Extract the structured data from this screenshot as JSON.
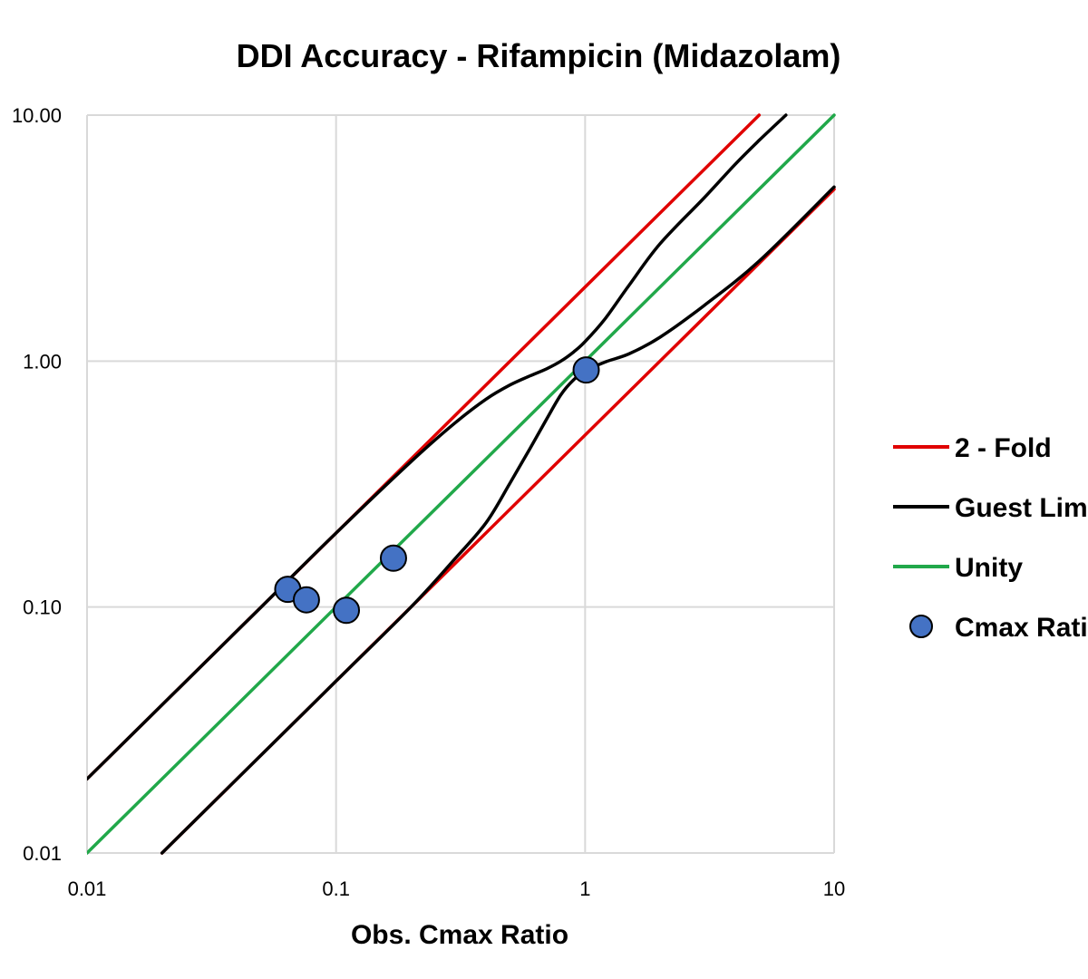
{
  "chart_data": {
    "type": "scatter",
    "title": "DDI Accuracy - Rifampicin (Midazolam)",
    "xlabel": "Obs.  Cmax Ratio",
    "ylabel": "",
    "x_scale": "log",
    "y_scale": "log",
    "xlim": [
      0.01,
      10
    ],
    "ylim": [
      0.01,
      10
    ],
    "x_ticks": [
      "0.01",
      "0.1",
      "1",
      "10"
    ],
    "y_ticks": [
      "0.01",
      "0.10",
      "1.00",
      "10.00"
    ],
    "grid": true,
    "legend_position": "right",
    "series": [
      {
        "name": "2 - Fold",
        "kind": "line",
        "color": "#e00000",
        "segments": [
          [
            [
              0.01,
              0.02
            ],
            [
              5,
              10
            ]
          ],
          [
            [
              0.02,
              0.01
            ],
            [
              10,
              5
            ]
          ]
        ]
      },
      {
        "name": "Guest Limits",
        "kind": "line",
        "color": "#000000",
        "segments": [
          [
            [
              0.01,
              0.02
            ],
            [
              0.05,
              0.1
            ],
            [
              0.1,
              0.2
            ],
            [
              0.2,
              0.39
            ],
            [
              0.3,
              0.56
            ],
            [
              0.4,
              0.7
            ],
            [
              0.5,
              0.8
            ],
            [
              0.6,
              0.87
            ],
            [
              0.7,
              0.93
            ],
            [
              0.8,
              1.0
            ],
            [
              0.9,
              1.09
            ],
            [
              1,
              1.2
            ],
            [
              1.2,
              1.48
            ],
            [
              1.5,
              2.03
            ],
            [
              2,
              3.0
            ],
            [
              3,
              4.6
            ],
            [
              4,
              6.3
            ],
            [
              5,
              7.9
            ],
            [
              6.4,
              10
            ]
          ],
          [
            [
              0.02,
              0.01
            ],
            [
              0.05,
              0.025
            ],
            [
              0.1,
              0.05
            ],
            [
              0.2,
              0.1
            ],
            [
              0.3,
              0.157
            ],
            [
              0.4,
              0.22
            ],
            [
              0.5,
              0.32
            ],
            [
              0.6,
              0.44
            ],
            [
              0.7,
              0.58
            ],
            [
              0.8,
              0.73
            ],
            [
              0.9,
              0.84
            ],
            [
              1,
              0.91
            ],
            [
              1.2,
              0.99
            ],
            [
              1.5,
              1.07
            ],
            [
              2,
              1.25
            ],
            [
              3,
              1.68
            ],
            [
              5,
              2.55
            ],
            [
              10,
              5.1
            ]
          ]
        ]
      },
      {
        "name": "Unity",
        "kind": "line",
        "color": "#21a84a",
        "segments": [
          [
            [
              0.01,
              0.01
            ],
            [
              10,
              10
            ]
          ]
        ]
      },
      {
        "name": "Cmax Ratio",
        "kind": "scatter",
        "color": "#4472c4",
        "points": [
          [
            0.064,
            0.118
          ],
          [
            0.076,
            0.107
          ],
          [
            0.11,
            0.097
          ],
          [
            0.17,
            0.158
          ],
          [
            1.01,
            0.92
          ]
        ]
      }
    ]
  }
}
